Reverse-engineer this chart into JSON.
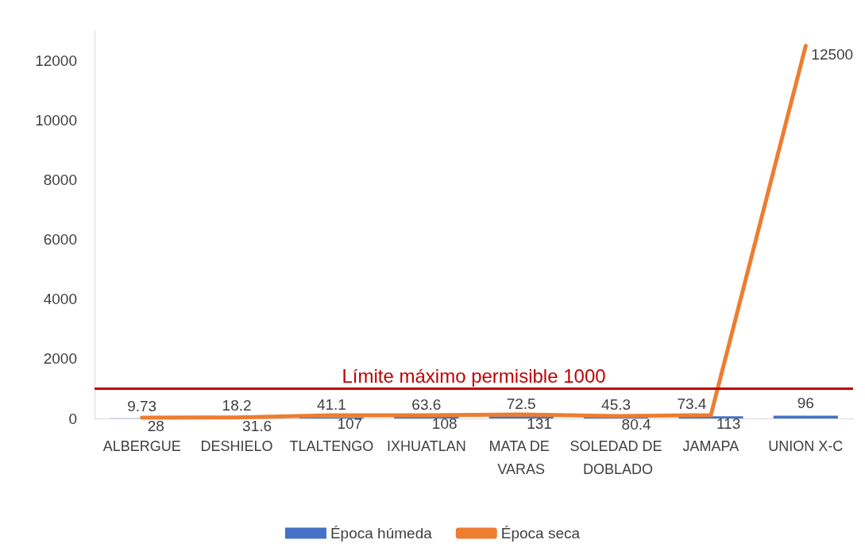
{
  "chart_data": {
    "type": "bar",
    "categories": [
      "ALBERGUE",
      "DESHIELO",
      "TLALTENGO",
      "IXHUATLAN",
      "MATA DE VARAS",
      "SOLEDAD DE DOBLADO",
      "JAMAPA",
      "UNION X-C"
    ],
    "series": [
      {
        "name": "Época húmeda",
        "color": "#4472c4",
        "values": [
          9.73,
          18.2,
          41.1,
          63.6,
          72.5,
          45.3,
          73.4,
          96
        ]
      },
      {
        "name": "Época seca",
        "type": "line",
        "color": "#ed7d31",
        "values": [
          28,
          31.6,
          107,
          108,
          131,
          80.4,
          113,
          12500
        ]
      }
    ],
    "ylim": [
      0,
      13000
    ],
    "yticks": [
      0,
      2000,
      4000,
      6000,
      8000,
      10000,
      12000
    ],
    "ref_lines": [
      {
        "axis": "y",
        "value": 1000,
        "label": "Límite máximo permisible 1000",
        "color": "#c00000"
      }
    ],
    "data_labels": true,
    "grid": false,
    "legend": "bottom",
    "marker": "none",
    "line_style": "solid"
  }
}
